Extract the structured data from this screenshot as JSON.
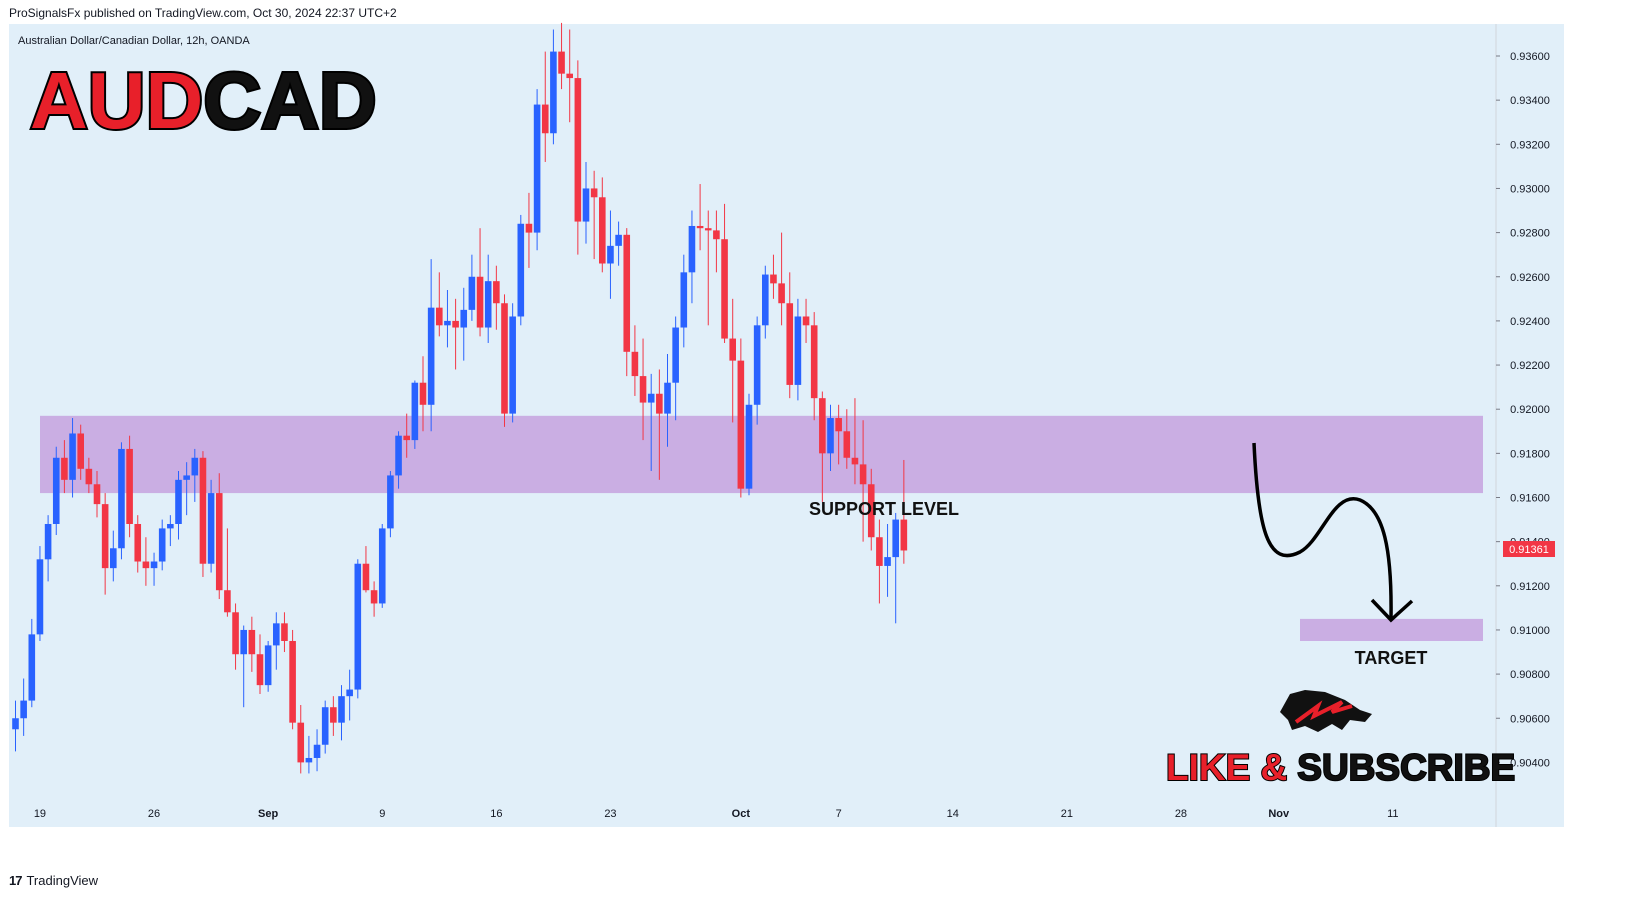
{
  "header": {
    "published": "ProSignalsFx published on TradingView.com, Oct 30, 2024 22:37 UTC+2",
    "symbol_desc": "Australian Dollar/Canadian Dollar, 12h, OANDA"
  },
  "title": {
    "part1": "AUD",
    "part2": "CAD"
  },
  "annotations": {
    "support": "SUPPORT LEVEL",
    "target": "TARGET",
    "like": "LIKE &",
    "subscribe": "SUBSCRIBE"
  },
  "footer": {
    "brand": "TradingView"
  },
  "colors": {
    "background": "#e1eff9",
    "bull": "#2962ff",
    "bear": "#f23645",
    "zone": "#c8a6e0",
    "price_tag": "#f23645"
  },
  "chart_data": {
    "type": "candlestick",
    "timeframe": "12h",
    "ylim": [
      0.9025,
      0.9375
    ],
    "y_ticks": [
      "0.93600",
      "0.93400",
      "0.93200",
      "0.93000",
      "0.92800",
      "0.92600",
      "0.92400",
      "0.92200",
      "0.92000",
      "0.91800",
      "0.91600",
      "0.91400",
      "0.91200",
      "0.91000",
      "0.90800",
      "0.90600",
      "0.90400"
    ],
    "x_ticks": [
      {
        "label": "19",
        "index": 3
      },
      {
        "label": "26",
        "index": 17
      },
      {
        "label": "Sep",
        "index": 31
      },
      {
        "label": "9",
        "index": 45
      },
      {
        "label": "16",
        "index": 59
      },
      {
        "label": "23",
        "index": 73
      },
      {
        "label": "Oct",
        "index": 89
      },
      {
        "label": "7",
        "index": 101
      },
      {
        "label": "14",
        "index": 115
      },
      {
        "label": "21",
        "index": 129
      },
      {
        "label": "28",
        "index": 143
      },
      {
        "label": "Nov",
        "index": 155
      },
      {
        "label": "11",
        "index": 169
      }
    ],
    "last_price": "0.91361",
    "support_zone": [
      0.9162,
      0.9197
    ],
    "target_zone": [
      0.9095,
      0.9105
    ],
    "candles": [
      [
        0.9055,
        0.9068,
        0.9045,
        0.906
      ],
      [
        0.906,
        0.9078,
        0.9052,
        0.9068
      ],
      [
        0.9068,
        0.9105,
        0.9065,
        0.9098
      ],
      [
        0.9098,
        0.9138,
        0.9095,
        0.9132
      ],
      [
        0.9132,
        0.9152,
        0.9122,
        0.9148
      ],
      [
        0.9148,
        0.9183,
        0.9143,
        0.9178
      ],
      [
        0.9178,
        0.9186,
        0.9162,
        0.9168
      ],
      [
        0.9168,
        0.9196,
        0.916,
        0.9189
      ],
      [
        0.9189,
        0.9193,
        0.9168,
        0.9173
      ],
      [
        0.9173,
        0.9178,
        0.9162,
        0.9166
      ],
      [
        0.9166,
        0.9172,
        0.9151,
        0.9157
      ],
      [
        0.9157,
        0.9162,
        0.9116,
        0.9128
      ],
      [
        0.9128,
        0.9145,
        0.9122,
        0.9137
      ],
      [
        0.9137,
        0.9185,
        0.9132,
        0.9182
      ],
      [
        0.9182,
        0.9188,
        0.9142,
        0.9148
      ],
      [
        0.9148,
        0.9152,
        0.9126,
        0.9131
      ],
      [
        0.9131,
        0.9142,
        0.912,
        0.9128
      ],
      [
        0.9128,
        0.9135,
        0.912,
        0.9131
      ],
      [
        0.9131,
        0.915,
        0.9127,
        0.9146
      ],
      [
        0.9146,
        0.9152,
        0.9138,
        0.9148
      ],
      [
        0.9148,
        0.9172,
        0.9141,
        0.9168
      ],
      [
        0.9168,
        0.9176,
        0.9152,
        0.917
      ],
      [
        0.917,
        0.9182,
        0.9158,
        0.9178
      ],
      [
        0.9178,
        0.9181,
        0.9124,
        0.913
      ],
      [
        0.913,
        0.9168,
        0.9126,
        0.9162
      ],
      [
        0.9162,
        0.9171,
        0.9114,
        0.9118
      ],
      [
        0.9118,
        0.9146,
        0.9106,
        0.9108
      ],
      [
        0.9108,
        0.9112,
        0.9082,
        0.9089
      ],
      [
        0.9089,
        0.9102,
        0.9065,
        0.91
      ],
      [
        0.91,
        0.9106,
        0.9081,
        0.9089
      ],
      [
        0.9089,
        0.9098,
        0.9071,
        0.9075
      ],
      [
        0.9075,
        0.9095,
        0.9072,
        0.9093
      ],
      [
        0.9093,
        0.9108,
        0.9082,
        0.9103
      ],
      [
        0.9103,
        0.9108,
        0.909,
        0.9095
      ],
      [
        0.9095,
        0.91,
        0.9055,
        0.9058
      ],
      [
        0.9058,
        0.9066,
        0.9035,
        0.904
      ],
      [
        0.904,
        0.9052,
        0.9035,
        0.9042
      ],
      [
        0.9042,
        0.9055,
        0.9036,
        0.9048
      ],
      [
        0.9048,
        0.9068,
        0.9044,
        0.9065
      ],
      [
        0.9065,
        0.907,
        0.9052,
        0.9058
      ],
      [
        0.9058,
        0.9075,
        0.905,
        0.907
      ],
      [
        0.907,
        0.9082,
        0.9059,
        0.9073
      ],
      [
        0.9073,
        0.9132,
        0.9069,
        0.913
      ],
      [
        0.913,
        0.9138,
        0.9117,
        0.9118
      ],
      [
        0.9118,
        0.9122,
        0.9106,
        0.9112
      ],
      [
        0.9112,
        0.9148,
        0.911,
        0.9146
      ],
      [
        0.9146,
        0.9172,
        0.9142,
        0.917
      ],
      [
        0.917,
        0.919,
        0.9164,
        0.9188
      ],
      [
        0.9188,
        0.9198,
        0.9178,
        0.9186
      ],
      [
        0.9186,
        0.9213,
        0.9182,
        0.9212
      ],
      [
        0.9212,
        0.9224,
        0.919,
        0.9202
      ],
      [
        0.9202,
        0.9268,
        0.919,
        0.9246
      ],
      [
        0.9246,
        0.9262,
        0.9233,
        0.9238
      ],
      [
        0.9238,
        0.9254,
        0.9228,
        0.924
      ],
      [
        0.924,
        0.925,
        0.9218,
        0.9237
      ],
      [
        0.9237,
        0.9255,
        0.9222,
        0.9245
      ],
      [
        0.9245,
        0.927,
        0.924,
        0.926
      ],
      [
        0.926,
        0.9282,
        0.9233,
        0.9237
      ],
      [
        0.9237,
        0.927,
        0.923,
        0.9258
      ],
      [
        0.9258,
        0.9265,
        0.9236,
        0.9248
      ],
      [
        0.9248,
        0.9252,
        0.9192,
        0.9198
      ],
      [
        0.9198,
        0.9248,
        0.9194,
        0.9242
      ],
      [
        0.9242,
        0.9288,
        0.9238,
        0.9284
      ],
      [
        0.9284,
        0.9298,
        0.9264,
        0.928
      ],
      [
        0.928,
        0.9345,
        0.9272,
        0.9338
      ],
      [
        0.9338,
        0.9362,
        0.9312,
        0.9325
      ],
      [
        0.9325,
        0.9372,
        0.932,
        0.9362
      ],
      [
        0.9362,
        0.9375,
        0.9345,
        0.9352
      ],
      [
        0.9352,
        0.9372,
        0.933,
        0.935
      ],
      [
        0.935,
        0.9358,
        0.927,
        0.9285
      ],
      [
        0.9285,
        0.9312,
        0.9275,
        0.93
      ],
      [
        0.93,
        0.9308,
        0.9268,
        0.9296
      ],
      [
        0.9296,
        0.9305,
        0.9262,
        0.9266
      ],
      [
        0.9266,
        0.929,
        0.925,
        0.9274
      ],
      [
        0.9274,
        0.9285,
        0.9265,
        0.9279
      ],
      [
        0.9279,
        0.9282,
        0.9215,
        0.9226
      ],
      [
        0.9226,
        0.9238,
        0.9206,
        0.9215
      ],
      [
        0.9215,
        0.9232,
        0.9186,
        0.9203
      ],
      [
        0.9203,
        0.9216,
        0.9172,
        0.9207
      ],
      [
        0.9207,
        0.9218,
        0.9168,
        0.9198
      ],
      [
        0.9198,
        0.9225,
        0.9183,
        0.9212
      ],
      [
        0.9212,
        0.9242,
        0.9195,
        0.9237
      ],
      [
        0.9237,
        0.927,
        0.9228,
        0.9262
      ],
      [
        0.9262,
        0.929,
        0.9248,
        0.9283
      ],
      [
        0.9283,
        0.9302,
        0.9272,
        0.9282
      ],
      [
        0.9282,
        0.929,
        0.9238,
        0.9281
      ],
      [
        0.9281,
        0.929,
        0.9262,
        0.9277
      ],
      [
        0.9277,
        0.9293,
        0.923,
        0.9232
      ],
      [
        0.9232,
        0.925,
        0.9194,
        0.9222
      ],
      [
        0.9222,
        0.9232,
        0.916,
        0.9164
      ],
      [
        0.9164,
        0.9207,
        0.9161,
        0.9202
      ],
      [
        0.9202,
        0.9242,
        0.9193,
        0.9238
      ],
      [
        0.9238,
        0.9265,
        0.9232,
        0.9261
      ],
      [
        0.9261,
        0.927,
        0.925,
        0.9257
      ],
      [
        0.9257,
        0.928,
        0.9238,
        0.9248
      ],
      [
        0.9248,
        0.9262,
        0.9205,
        0.9211
      ],
      [
        0.9211,
        0.925,
        0.9204,
        0.9242
      ],
      [
        0.9242,
        0.925,
        0.923,
        0.9238
      ],
      [
        0.9238,
        0.9244,
        0.9195,
        0.9205
      ],
      [
        0.9205,
        0.9208,
        0.9158,
        0.918
      ],
      [
        0.918,
        0.9202,
        0.9172,
        0.9196
      ],
      [
        0.9196,
        0.9202,
        0.9175,
        0.919
      ],
      [
        0.919,
        0.92,
        0.9173,
        0.9178
      ],
      [
        0.9178,
        0.9205,
        0.9166,
        0.9175
      ],
      [
        0.9175,
        0.9195,
        0.914,
        0.9166
      ],
      [
        0.9166,
        0.9173,
        0.9136,
        0.9142
      ],
      [
        0.9142,
        0.915,
        0.9112,
        0.9129
      ],
      [
        0.9129,
        0.9148,
        0.9115,
        0.9133
      ],
      [
        0.9133,
        0.9153,
        0.9103,
        0.915
      ],
      [
        0.915,
        0.9177,
        0.913,
        0.9136
      ]
    ]
  }
}
